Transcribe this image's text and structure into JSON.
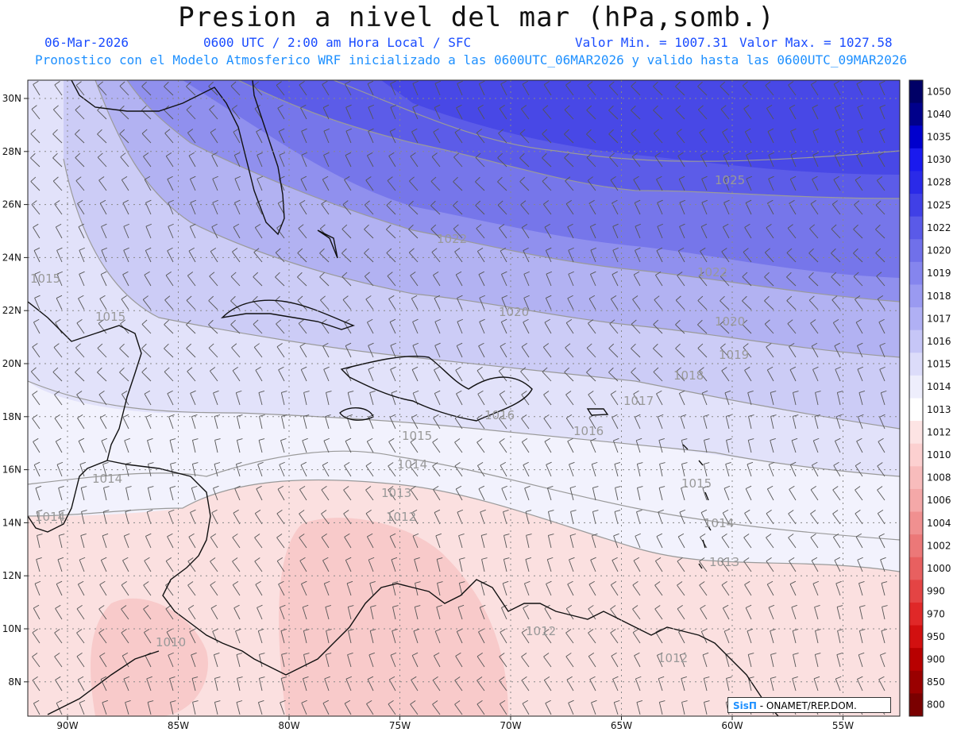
{
  "header": {
    "title": "Presion a nivel del mar (hPa,somb.)",
    "date": "06-Mar-2026",
    "time": "0600 UTC / 2:00 am Hora Local / SFC",
    "min_label": "Valor Min. = 1007.31",
    "max_label": "Valor Max. = 1027.58",
    "model_line": "Pronostico con el Modelo Atmosferico WRF inicializado a las 0600UTC_06MAR2026 y valido hasta las  0600UTC_09MAR2026"
  },
  "map": {
    "lat_ticks": [
      "30N",
      "28N",
      "26N",
      "24N",
      "22N",
      "20N",
      "18N",
      "16N",
      "14N",
      "12N",
      "10N",
      "8N"
    ],
    "lon_ticks": [
      "90W",
      "85W",
      "80W",
      "75W",
      "70W",
      "65W",
      "60W",
      "55W"
    ],
    "isobar_labels": [
      "1025",
      "1022",
      "1022",
      "1020",
      "1020",
      "1019",
      "1018",
      "1017",
      "1016",
      "1016",
      "1015",
      "1015",
      "1015",
      "1014",
      "1014",
      "1014",
      "1013",
      "1013",
      "1012",
      "1012",
      "1012",
      "1010",
      "1014",
      "1015"
    ],
    "credit_brand": "SisΠ",
    "credit_text": " - ONAMET/REP.DOM."
  },
  "colorbar": {
    "levels": [
      "1050",
      "1040",
      "1035",
      "1030",
      "1028",
      "1025",
      "1022",
      "1020",
      "1019",
      "1018",
      "1017",
      "1016",
      "1015",
      "1014",
      "1013",
      "1012",
      "1010",
      "1008",
      "1006",
      "1004",
      "1002",
      "1000",
      "990",
      "970",
      "950",
      "900",
      "850",
      "800"
    ],
    "colors": [
      "#000066",
      "#00008b",
      "#0000cd",
      "#1a1aee",
      "#2a2ae8",
      "#4040e6",
      "#5a5ae8",
      "#7070ea",
      "#8585ee",
      "#9a9af1",
      "#b0b0f4",
      "#c6c6f7",
      "#dcdcfa",
      "#eeeefc",
      "#ffffff",
      "#fde4e4",
      "#fcd0d0",
      "#f8bcbc",
      "#f4a8a8",
      "#f09090",
      "#ec7878",
      "#e86060",
      "#e44444",
      "#e02828",
      "#d21010",
      "#b80000",
      "#9a0000",
      "#7a0000"
    ]
  }
}
